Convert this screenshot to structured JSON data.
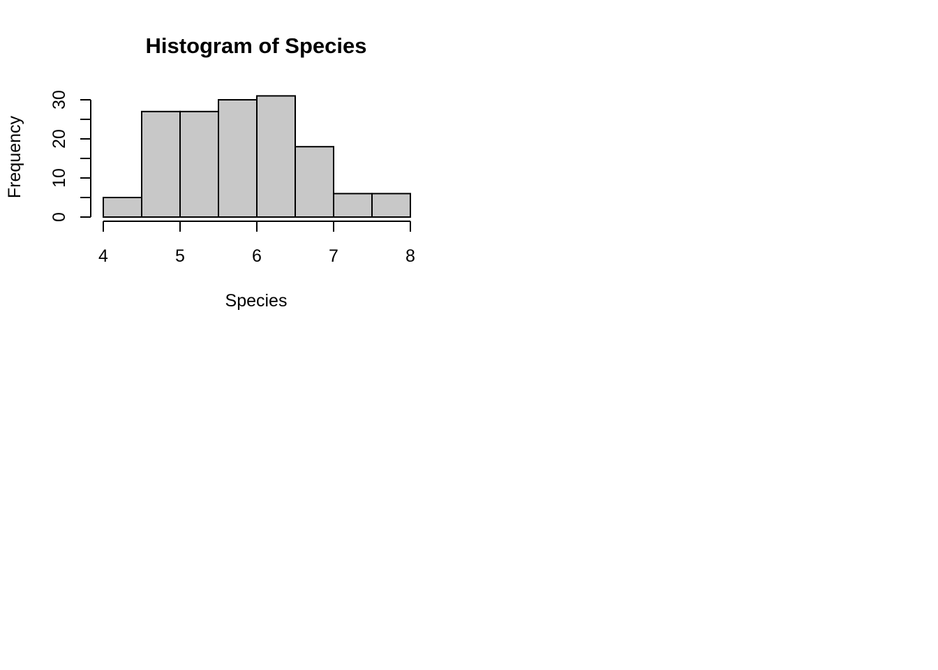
{
  "chart_data": {
    "type": "bar",
    "subtype": "histogram",
    "title": "Histogram of Species",
    "xlabel": "Species",
    "ylabel": "Frequency",
    "bins": [
      {
        "start": 4.0,
        "end": 4.5,
        "count": 5
      },
      {
        "start": 4.5,
        "end": 5.0,
        "count": 27
      },
      {
        "start": 5.0,
        "end": 5.5,
        "count": 27
      },
      {
        "start": 5.5,
        "end": 6.0,
        "count": 30
      },
      {
        "start": 6.0,
        "end": 6.5,
        "count": 31
      },
      {
        "start": 6.5,
        "end": 7.0,
        "count": 18
      },
      {
        "start": 7.0,
        "end": 7.5,
        "count": 6
      },
      {
        "start": 7.5,
        "end": 8.0,
        "count": 6
      }
    ],
    "xlim": [
      4,
      8
    ],
    "ylim": [
      0,
      31
    ],
    "x_ticks": [
      "4",
      "5",
      "6",
      "7",
      "8"
    ],
    "y_ticks": [
      "0",
      "10",
      "20",
      "30"
    ],
    "grid": false,
    "legend": "none",
    "bar_fill": "#c8c8c8",
    "bar_stroke": "#000000"
  }
}
